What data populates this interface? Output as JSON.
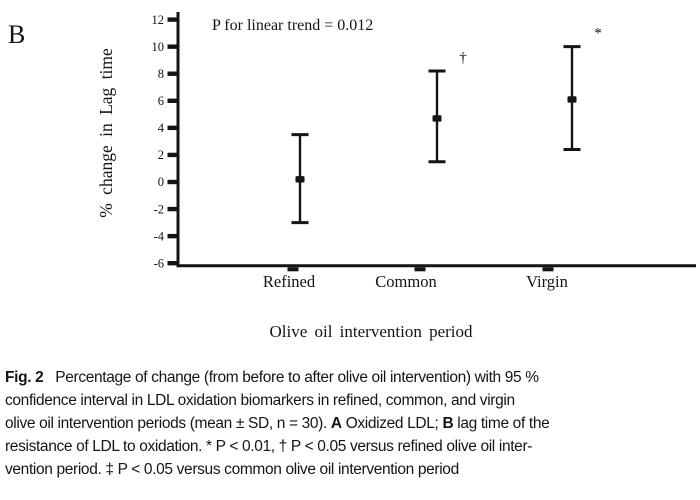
{
  "panel_label": "B",
  "chart_data": {
    "type": "scatter",
    "subtype": "mean-with-error-bars",
    "annotation": "P for linear trend = 0.012",
    "categories": [
      "Refined",
      "Common",
      "Virgin"
    ],
    "series": [
      {
        "name": "% change in Lag time (mean with 95 % CI)",
        "means": [
          0.2,
          4.7,
          6.1
        ],
        "ci_low": [
          -3.0,
          1.5,
          2.4
        ],
        "ci_high": [
          3.5,
          8.2,
          10.0
        ],
        "significance": [
          "",
          "†",
          "*"
        ]
      }
    ],
    "xlabel": "Olive oil intervention period",
    "ylabel": "% change in Lag time",
    "ylim": [
      -6,
      12
    ],
    "yticks": [
      12,
      10,
      8,
      6,
      4,
      2,
      0,
      -2,
      -4,
      -6
    ],
    "grid": false,
    "legend_position": "none",
    "marker": "filled-square",
    "color": "#141414"
  },
  "caption": {
    "lines": [
      {
        "segments": [
          {
            "text": "Fig. 2",
            "bold": true
          },
          {
            "text": "   Percentage of change (from before to after olive oil intervention) with 95 %",
            "bold": false
          }
        ]
      },
      {
        "segments": [
          {
            "text": "confidence interval in LDL oxidation biomarkers in refined, common, and virgin",
            "bold": false
          }
        ]
      },
      {
        "segments": [
          {
            "text": "olive oil intervention periods (mean ± SD, n = 30). ",
            "bold": false
          },
          {
            "text": "A",
            "bold": true
          },
          {
            "text": " Oxidized LDL; ",
            "bold": false
          },
          {
            "text": "B",
            "bold": true
          },
          {
            "text": " lag time of the",
            "bold": false
          }
        ]
      },
      {
        "segments": [
          {
            "text": "resistance of LDL to oxidation. * P < 0.01, † P < 0.05 versus refined olive oil inter-",
            "bold": false
          }
        ]
      },
      {
        "segments": [
          {
            "text": "vention period. ‡ P < 0.05 versus common olive oil intervention period",
            "bold": false
          }
        ]
      }
    ]
  }
}
